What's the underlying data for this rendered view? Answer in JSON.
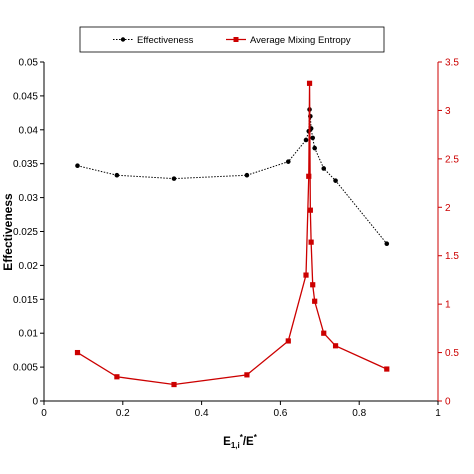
{
  "chart_data": {
    "type": "line",
    "xlabel": "E",
    "xlabel_sub": "1,i",
    "xlabel_sup1": "*",
    "xlabel_mid": "/E",
    "xlabel_sup2": "*",
    "ylabel": "Effectiveness",
    "y2label": "",
    "xlim": [
      0,
      1
    ],
    "ylim": [
      0,
      0.05
    ],
    "y2lim": [
      0,
      3.5
    ],
    "x_ticks": [
      0,
      0.2,
      0.4,
      0.6,
      0.8,
      1
    ],
    "x_tick_labels": [
      "0",
      "0.2",
      "0.4",
      "0.6",
      "0.8",
      "1"
    ],
    "y_ticks": [
      0,
      0.005,
      0.01,
      0.015,
      0.02,
      0.025,
      0.03,
      0.035,
      0.04,
      0.045,
      0.05
    ],
    "y_tick_labels": [
      "0",
      "0.005",
      "0.01",
      "0.015",
      "0.02",
      "0.025",
      "0.03",
      "0.035",
      "0.04",
      "0.045",
      "0.05"
    ],
    "y2_ticks": [
      0,
      0.5,
      1,
      1.5,
      2,
      2.5,
      3,
      3.5
    ],
    "y2_tick_labels": [
      "0",
      "0.5",
      "1",
      "1.5",
      "2",
      "2.5",
      "3",
      "3.5"
    ],
    "grid": false,
    "legend_position": "top",
    "series": [
      {
        "name": "Effectiveness",
        "axis": "left",
        "color": "#000000",
        "line_style": "dotted",
        "marker": "circle",
        "x": [
          0.085,
          0.185,
          0.33,
          0.515,
          0.62,
          0.665,
          0.672,
          0.674,
          0.676,
          0.678,
          0.682,
          0.687,
          0.71,
          0.74,
          0.87
        ],
        "y": [
          0.0347,
          0.0333,
          0.0328,
          0.0333,
          0.0353,
          0.0385,
          0.0398,
          0.043,
          0.042,
          0.0402,
          0.0388,
          0.0373,
          0.0343,
          0.0325,
          0.0232
        ]
      },
      {
        "name": "Average Mixing Entropy",
        "axis": "right",
        "color": "#cc0000",
        "line_style": "solid",
        "marker": "square",
        "x": [
          0.085,
          0.185,
          0.33,
          0.515,
          0.62,
          0.665,
          0.672,
          0.674,
          0.676,
          0.678,
          0.682,
          0.687,
          0.71,
          0.74,
          0.87
        ],
        "y": [
          0.5,
          0.25,
          0.17,
          0.27,
          0.62,
          1.3,
          2.32,
          3.28,
          1.97,
          1.64,
          1.2,
          1.03,
          0.7,
          0.57,
          0.33
        ]
      }
    ]
  }
}
